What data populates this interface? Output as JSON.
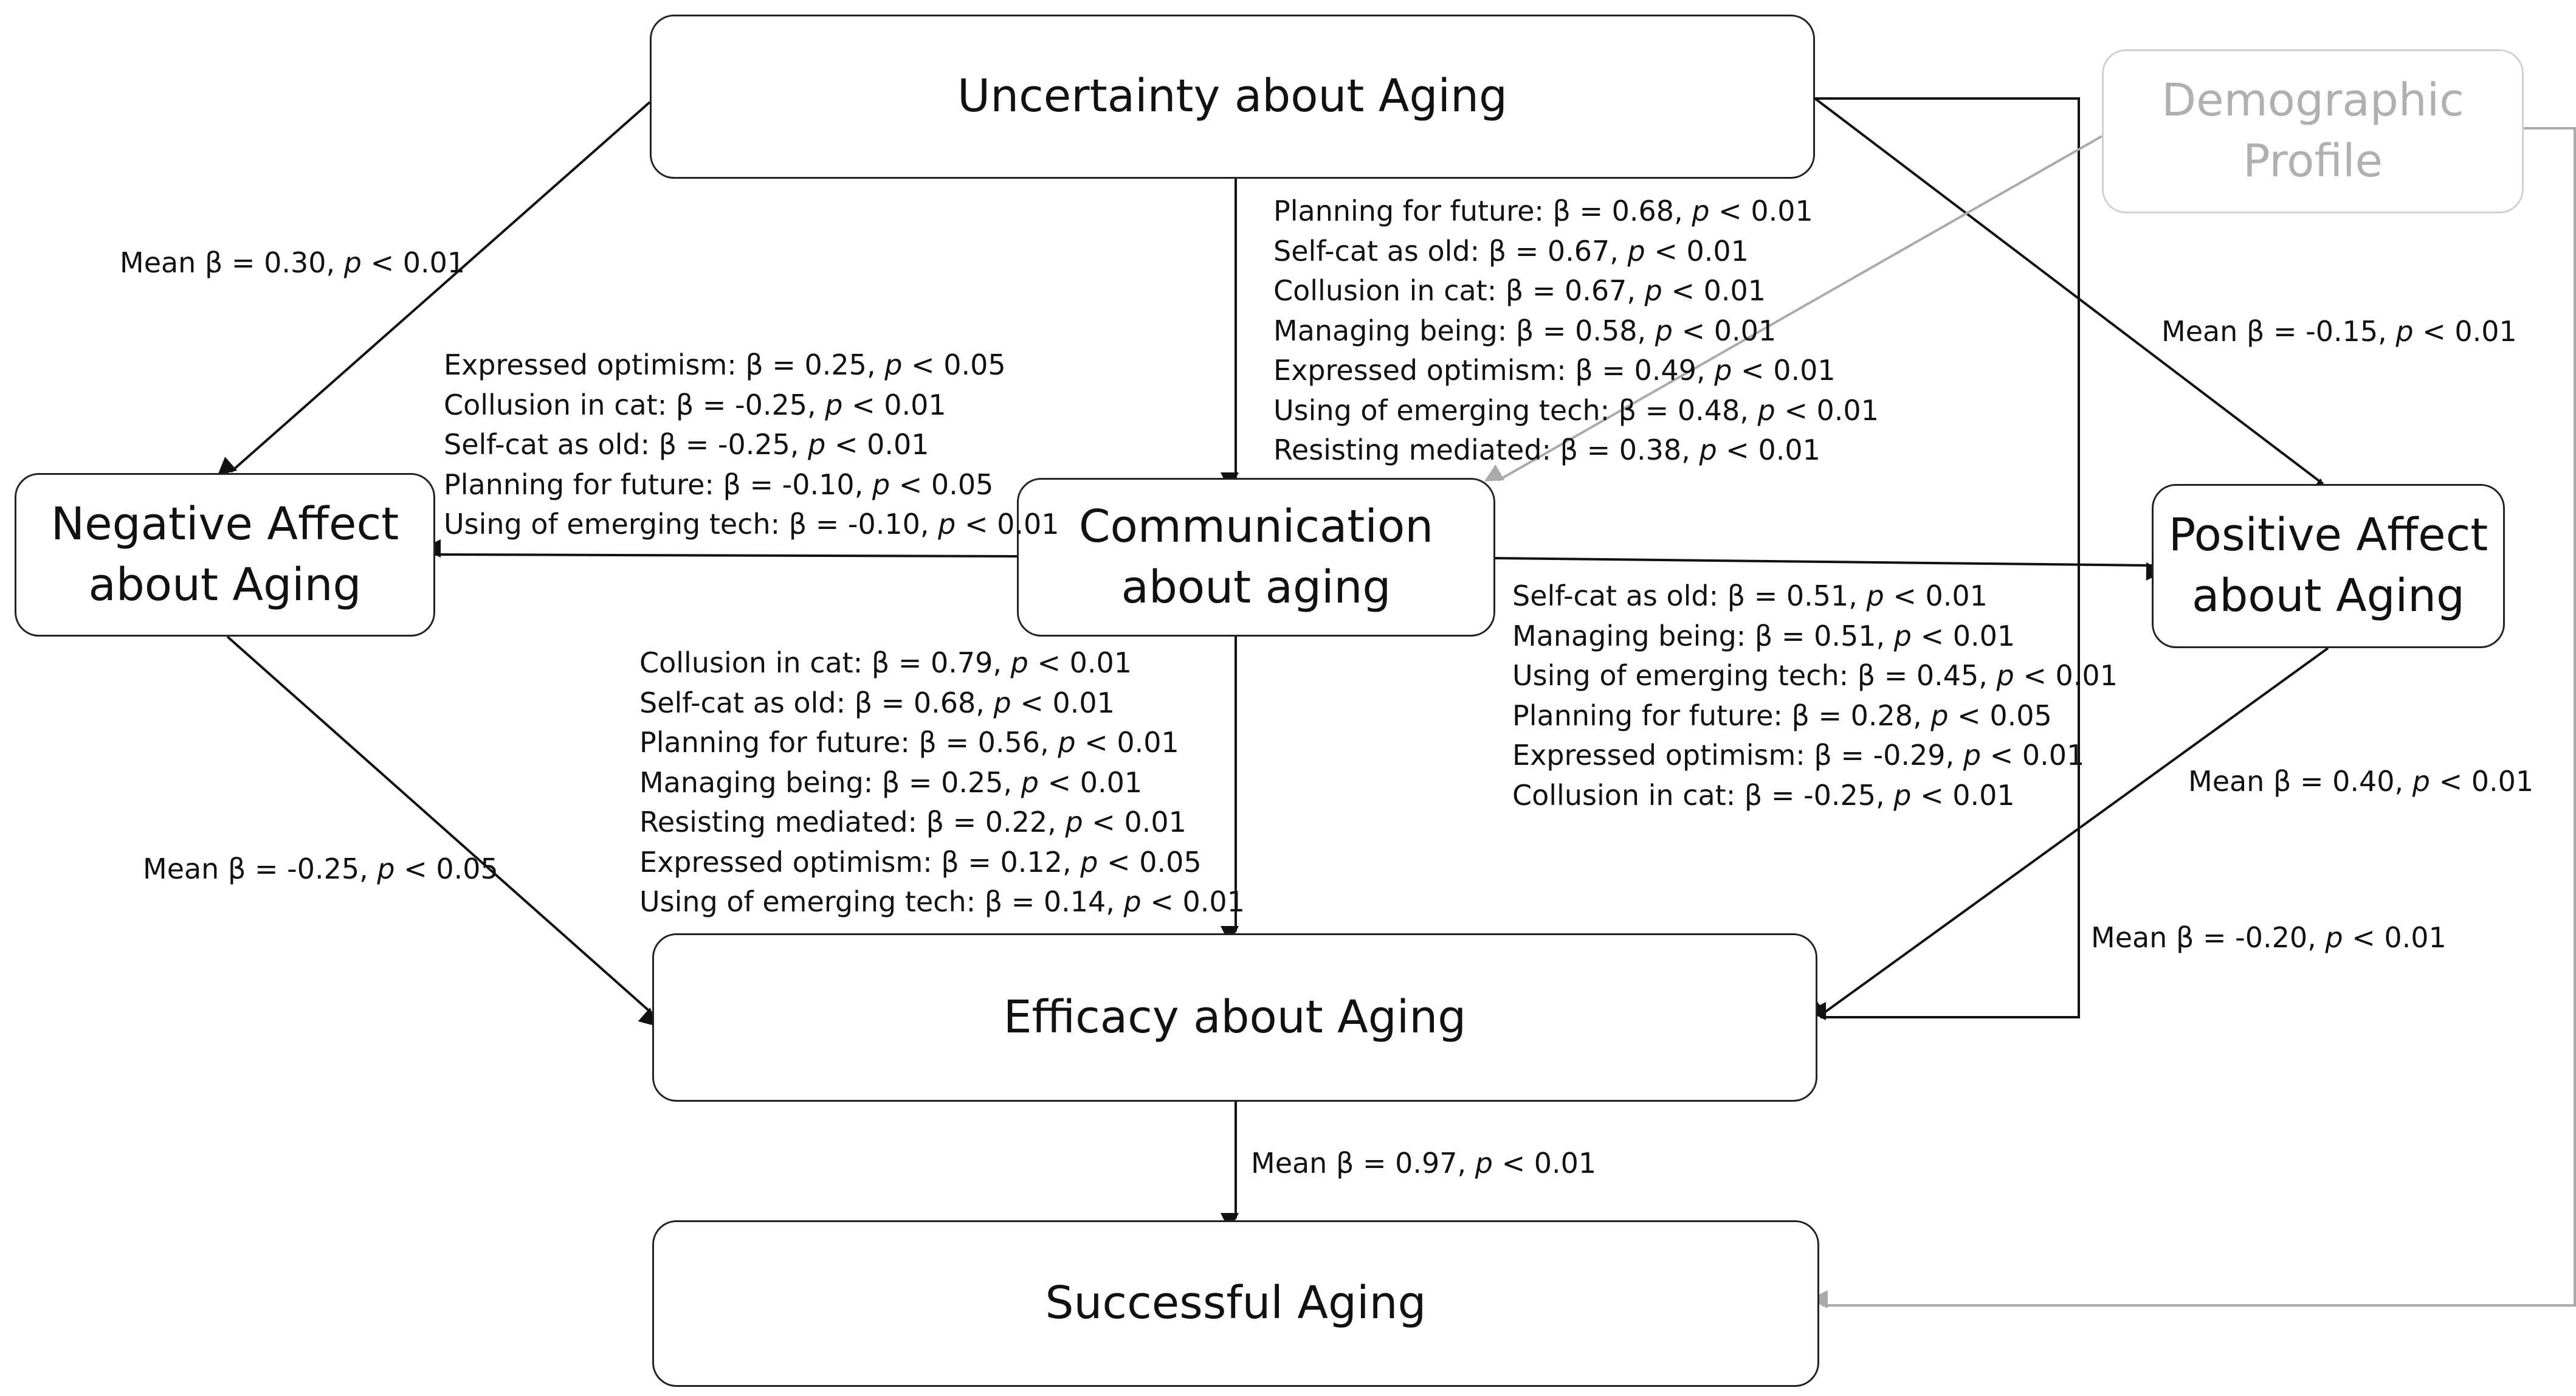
{
  "nodes": {
    "uncertainty": {
      "lines": [
        "Uncertainty about Aging"
      ]
    },
    "demographic": {
      "lines": [
        "Demographic",
        "Profile"
      ]
    },
    "negative": {
      "lines": [
        "Negative Affect",
        "about Aging"
      ]
    },
    "communication": {
      "lines": [
        "Communication",
        "about aging"
      ]
    },
    "positive": {
      "lines": [
        "Positive Affect",
        "about Aging"
      ]
    },
    "efficacy": {
      "lines": [
        "Efficacy about Aging"
      ]
    },
    "successful": {
      "lines": [
        "Successful Aging"
      ]
    }
  },
  "labels": {
    "unc_neg": [
      {
        "name": "Mean",
        "beta": "0.30",
        "p": "< 0.01"
      }
    ],
    "unc_pos": [
      {
        "name": "Mean",
        "beta": "-0.15",
        "p": "< 0.01"
      }
    ],
    "unc_comm": [
      {
        "name": "Planning for future:",
        "beta": "0.68",
        "p": "< 0.01"
      },
      {
        "name": "Self-cat as old:",
        "beta": "0.67",
        "p": "< 0.01"
      },
      {
        "name": "Collusion in cat:",
        "beta": "0.67",
        "p": "< 0.01"
      },
      {
        "name": "Managing being:",
        "beta": "0.58",
        "p": "< 0.01"
      },
      {
        "name": "Expressed optimism:",
        "beta": "0.49",
        "p": "< 0.01"
      },
      {
        "name": "Using of emerging tech:",
        "beta": "0.48",
        "p": "< 0.01"
      },
      {
        "name": "Resisting mediated:",
        "beta": "0.38",
        "p": "< 0.01"
      }
    ],
    "comm_neg": [
      {
        "name": "Expressed optimism:",
        "beta": "0.25",
        "p": "< 0.05"
      },
      {
        "name": "Collusion in cat:",
        "beta": "-0.25",
        "p": "< 0.01"
      },
      {
        "name": "Self-cat as old:",
        "beta": "-0.25",
        "p": "< 0.01"
      },
      {
        "name": "Planning for future:",
        "beta": "-0.10",
        "p": "< 0.05"
      },
      {
        "name": "Using of emerging tech:",
        "beta": "-0.10",
        "p": "< 0.01"
      }
    ],
    "comm_pos": [
      {
        "name": "Self-cat as old:",
        "beta": "0.51",
        "p": "< 0.01"
      },
      {
        "name": "Managing being:",
        "beta": "0.51",
        "p": "< 0.01"
      },
      {
        "name": "Using of emerging tech:",
        "beta": "0.45",
        "p": "< 0.01"
      },
      {
        "name": "Planning for future:",
        "beta": "0.28",
        "p": "< 0.05"
      },
      {
        "name": "Expressed optimism:",
        "beta": "-0.29",
        "p": "< 0.01"
      },
      {
        "name": "Collusion in cat:",
        "beta": "-0.25",
        "p": "< 0.01"
      }
    ],
    "comm_eff": [
      {
        "name": "Collusion in cat:",
        "beta": "0.79",
        "p": "< 0.01"
      },
      {
        "name": "Self-cat as old:",
        "beta": "0.68",
        "p": "< 0.01"
      },
      {
        "name": "Planning for future:",
        "beta": "0.56",
        "p": "< 0.01"
      },
      {
        "name": "Managing being:",
        "beta": "0.25",
        "p": "< 0.01"
      },
      {
        "name": "Resisting mediated:",
        "beta": "0.22",
        "p": "< 0.01"
      },
      {
        "name": "Expressed optimism:",
        "beta": "0.12",
        "p": "< 0.05"
      },
      {
        "name": "Using of emerging tech:",
        "beta": "0.14",
        "p": "< 0.01"
      }
    ],
    "neg_eff": [
      {
        "name": "Mean",
        "beta": "-0.25",
        "p": "< 0.05"
      }
    ],
    "pos_eff": [
      {
        "name": "Mean",
        "beta": "0.40",
        "p": "< 0.01"
      }
    ],
    "unc_eff": [
      {
        "name": "Mean",
        "beta": "-0.20",
        "p": "< 0.01"
      }
    ],
    "eff_succ": [
      {
        "name": "Mean",
        "beta": "0.97",
        "p": "< 0.01"
      }
    ]
  },
  "symbols": {
    "beta": "β",
    "equals": "=",
    "p_symbol": "p"
  }
}
